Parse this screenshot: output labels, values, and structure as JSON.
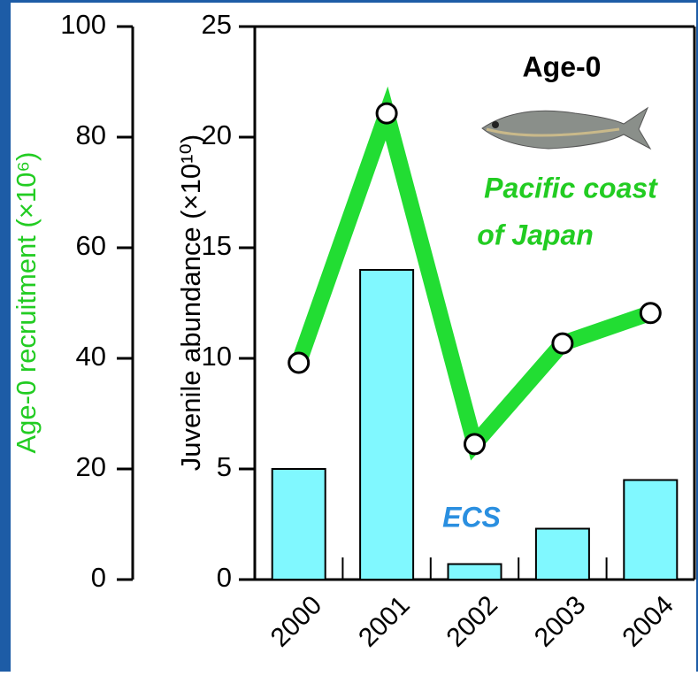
{
  "chart_data": {
    "type": "bar",
    "ylabel": "Age-0 recruitment (×10⁶)",
    "y2label": "Juvenile abundance (×10¹⁰)",
    "categories": [
      "2000",
      "2001",
      "2002",
      "2003",
      "2004"
    ],
    "ylim": [
      0,
      100
    ],
    "yticks": [
      0,
      20,
      40,
      60,
      80,
      100
    ],
    "y2lim": [
      0,
      25
    ],
    "y2ticks": [
      0,
      5,
      10,
      15,
      20,
      25
    ],
    "series": [
      {
        "type": "bar",
        "axis": "y2",
        "color": "#80f8ff",
        "values": [
          5.0,
          14.0,
          0.7,
          2.3,
          4.5
        ]
      },
      {
        "type": "line",
        "color": "#22dd33",
        "values": [
          39.2,
          84.3,
          24.5,
          42.7,
          48.2
        ]
      }
    ],
    "annotations": [
      {
        "text": "Age-0",
        "color": "#000000"
      },
      {
        "text": "Pacific coast",
        "color": "#22cc22"
      },
      {
        "text": "of Japan",
        "color": "#22cc22"
      },
      {
        "text": "ECS",
        "color": "#2a8fe0"
      }
    ]
  }
}
